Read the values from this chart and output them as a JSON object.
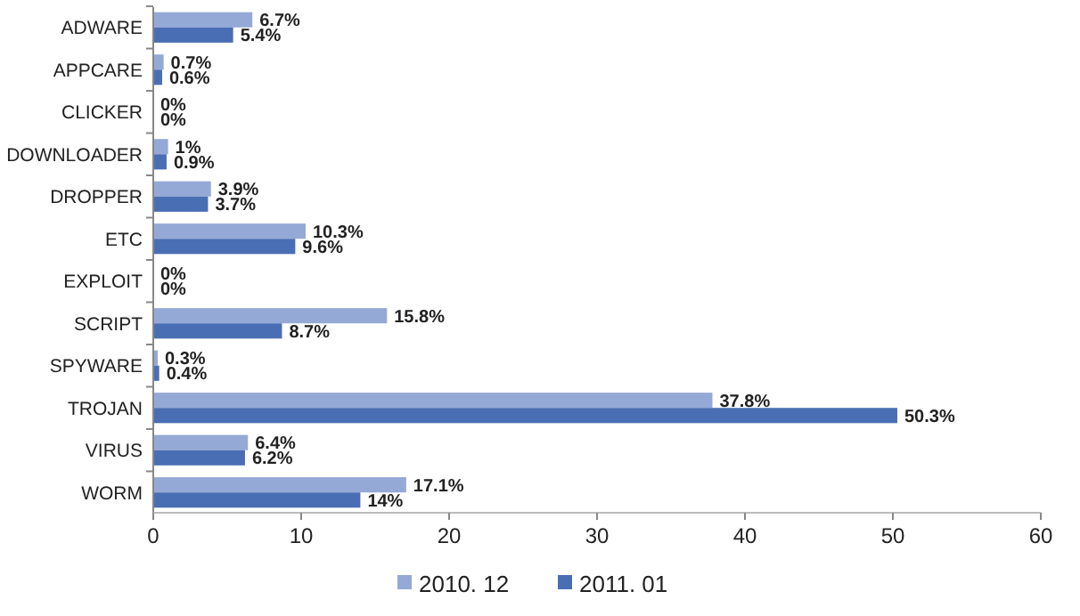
{
  "chart_data": {
    "type": "bar",
    "orientation": "horizontal",
    "categories": [
      "ADWARE",
      "APPCARE",
      "CLICKER",
      "DOWNLOADER",
      "DROPPER",
      "ETC",
      "EXPLOIT",
      "SCRIPT",
      "SPYWARE",
      "TROJAN",
      "VIRUS",
      "WORM"
    ],
    "series": [
      {
        "name": "2010. 12",
        "color": "#95a9d6",
        "values": [
          6.7,
          0.7,
          0,
          1,
          3.9,
          10.3,
          0,
          15.8,
          0.3,
          37.8,
          6.4,
          17.1
        ],
        "value_labels": [
          "6.7%",
          "0.7%",
          "0%",
          "1%",
          "3.9%",
          "10.3%",
          "0%",
          "15.8%",
          "0.3%",
          "37.8%",
          "6.4%",
          "17.1%"
        ]
      },
      {
        "name": "2011. 01",
        "color": "#4a6eb3",
        "values": [
          5.4,
          0.6,
          0,
          0.9,
          3.7,
          9.6,
          0,
          8.7,
          0.4,
          50.3,
          6.2,
          14
        ],
        "value_labels": [
          "5.4%",
          "0.6%",
          "0%",
          "0.9%",
          "3.7%",
          "9.6%",
          "0%",
          "8.7%",
          "0.4%",
          "50.3%",
          "6.2%",
          "14%"
        ]
      }
    ],
    "xlim": [
      0,
      60
    ],
    "xticks": [
      0,
      10,
      20,
      30,
      40,
      50,
      60
    ],
    "grid": false,
    "legend": "bottom"
  }
}
